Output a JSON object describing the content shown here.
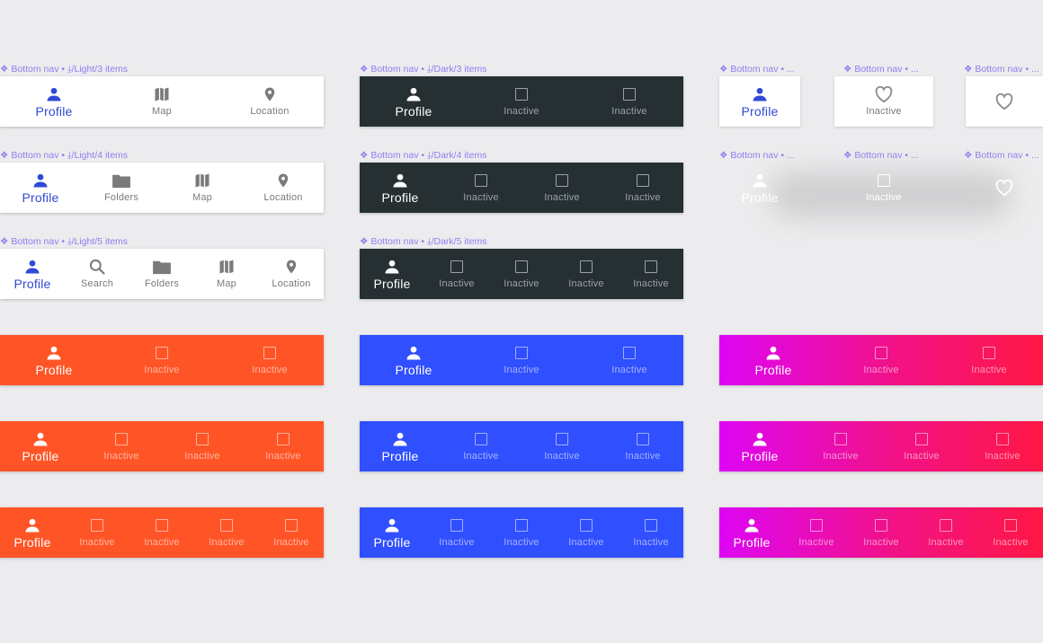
{
  "labels": {
    "l3": "❖ Bottom nav • ⤓/Light/3 items",
    "l4": "❖ Bottom nav • ⤓/Light/4 items",
    "l5": "❖ Bottom nav • ⤓/Light/5 items",
    "d3": "❖ Bottom nav • ⤓/Dark/3 items",
    "d4": "❖ Bottom nav • ⤓/Dark/4 items",
    "d5": "❖ Bottom nav • ⤓/Dark/5 items",
    "r1": "❖ Bottom nav • ...",
    "r2": "❖ Bottom nav • ...",
    "r3": "❖ Bottom nav • ...",
    "r4": "❖ Bottom nav • ...",
    "r5": "❖ Bottom nav • ...",
    "r6": "❖ Bottom nav • ..."
  },
  "items": {
    "profile": "Profile",
    "search": "Search",
    "folders": "Folders",
    "map": "Map",
    "location": "Location",
    "inactive": "Inactive"
  },
  "colors": {
    "background": "#ececee",
    "light_active": "#2f4ad6",
    "dark_bg": "#263033",
    "orange": "#ff5526",
    "blue": "#304ffe",
    "gradient_start": "#dd06f4",
    "gradient_end": "#ff1744",
    "label_purple": "#8c7ff0"
  }
}
